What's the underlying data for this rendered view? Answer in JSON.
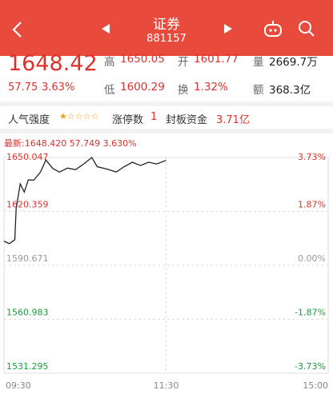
{
  "header": {
    "title": "证券",
    "code": "881157"
  },
  "quote": {
    "price": "1648.42",
    "change": "57.75",
    "change_pct": "3.63%",
    "stats": [
      {
        "label": "高",
        "value": "1650.05"
      },
      {
        "label": "开",
        "value": "1601.77"
      },
      {
        "label": "量",
        "value": "2669.7万"
      },
      {
        "label": "低",
        "value": "1600.29"
      },
      {
        "label": "换",
        "value": "1.32%"
      },
      {
        "label": "额",
        "value": "368.3亿"
      }
    ]
  },
  "info_bar": {
    "popularity": "人气强度",
    "limit_up_label": "涨停数",
    "limit_up_value": "1",
    "seal_label": "封板资金",
    "seal_value": "3.71亿"
  },
  "chart_data": {
    "type": "line",
    "latest": "最新:1648.420 57.749 3.630%",
    "x": [
      0,
      4,
      8,
      9,
      12,
      15,
      18,
      22,
      27,
      31,
      36,
      41,
      47,
      53,
      59,
      65,
      69,
      77,
      83,
      89,
      95,
      101,
      107,
      113,
      120
    ],
    "series": [
      {
        "color": "#222222",
        "values": [
          1603.9,
          1602.6,
          1604.8,
          1622,
          1635.5,
          1631,
          1637.7,
          1637.5,
          1642,
          1648.7,
          1644,
          1642,
          1644.2,
          1643.3,
          1646.5,
          1650,
          1645,
          1643.5,
          1642,
          1645,
          1647.4,
          1645.6,
          1647.4,
          1646.5,
          1648.4
        ]
      }
    ],
    "xlim": [
      0,
      240
    ],
    "xticks": [
      {
        "value": 0,
        "label": "09:30"
      },
      {
        "value": 120,
        "label": "11:30"
      },
      {
        "value": 240,
        "label": "15:00"
      }
    ],
    "ylim": [
      1531.295,
      1650.047
    ],
    "yticks": [
      1531.295,
      1560.983,
      1590.671,
      1620.359,
      1650.047
    ],
    "y2lim": [
      -3.73,
      3.73
    ],
    "y2ticks": [
      {
        "value": -3.73,
        "label": "-3.73%"
      },
      {
        "value": -1.87,
        "label": "-1.87%"
      },
      {
        "value": 0,
        "label": "0.00%"
      },
      {
        "value": 1.87,
        "label": "1.87%"
      },
      {
        "value": 3.73,
        "label": "3.73%"
      }
    ],
    "grid": true,
    "up_color": "#e0302a",
    "down_color": "#1a9c3a",
    "flat_color": "#999999"
  }
}
